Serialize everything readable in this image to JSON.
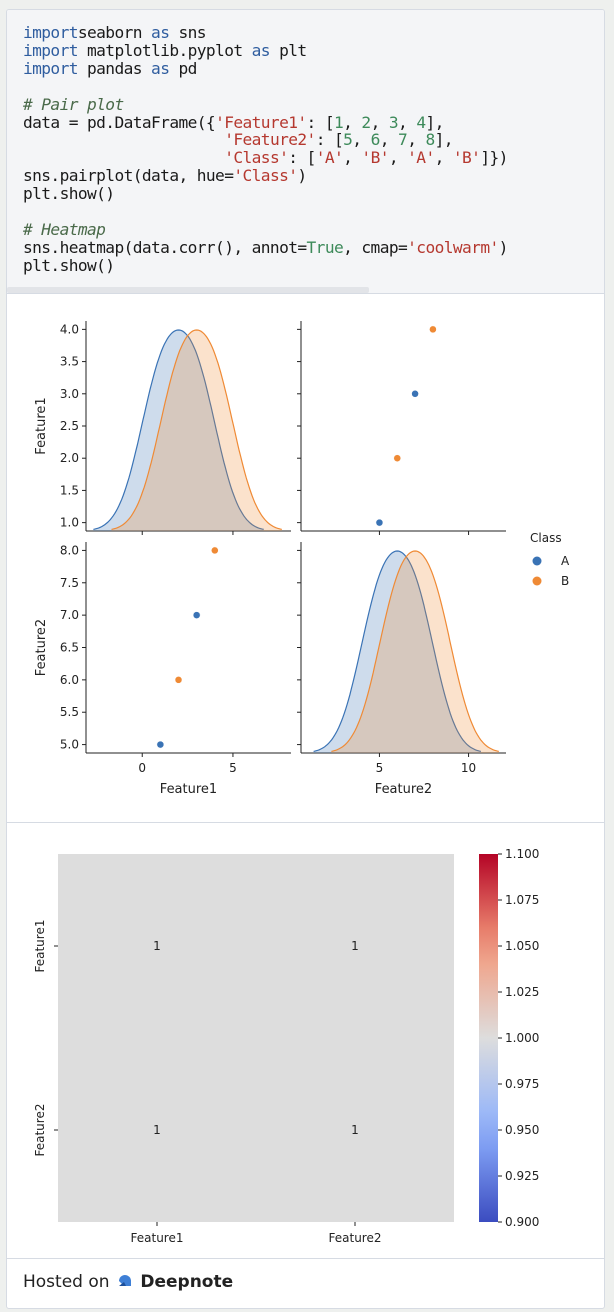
{
  "code": {
    "lines": [
      [
        [
          "kw",
          "import"
        ],
        [
          "",
          "seaborn "
        ],
        [
          "kw",
          "as"
        ],
        [
          "",
          " sns"
        ]
      ],
      [
        [
          "kw",
          "import"
        ],
        [
          "",
          " matplotlib.pyplot "
        ],
        [
          "kw",
          "as"
        ],
        [
          "",
          " plt"
        ]
      ],
      [
        [
          "kw",
          "import"
        ],
        [
          "",
          " pandas "
        ],
        [
          "kw",
          "as"
        ],
        [
          "",
          " pd"
        ]
      ],
      [],
      [
        [
          "cm",
          "# Pair plot"
        ]
      ],
      [
        [
          "",
          "data = pd.DataFrame({"
        ],
        [
          "str",
          "'Feature1'"
        ],
        [
          "",
          ": ["
        ],
        [
          "num",
          "1"
        ],
        [
          "",
          ", "
        ],
        [
          "num",
          "2"
        ],
        [
          "",
          ", "
        ],
        [
          "num",
          "3"
        ],
        [
          "",
          ", "
        ],
        [
          "num",
          "4"
        ],
        [
          "",
          "],"
        ]
      ],
      [
        [
          "",
          "                      "
        ],
        [
          "str",
          "'Feature2'"
        ],
        [
          "",
          ": ["
        ],
        [
          "num",
          "5"
        ],
        [
          "",
          ", "
        ],
        [
          "num",
          "6"
        ],
        [
          "",
          ", "
        ],
        [
          "num",
          "7"
        ],
        [
          "",
          ", "
        ],
        [
          "num",
          "8"
        ],
        [
          "",
          "],"
        ]
      ],
      [
        [
          "",
          "                      "
        ],
        [
          "str",
          "'Class'"
        ],
        [
          "",
          ": ["
        ],
        [
          "str",
          "'A'"
        ],
        [
          "",
          ", "
        ],
        [
          "str",
          "'B'"
        ],
        [
          "",
          ", "
        ],
        [
          "str",
          "'A'"
        ],
        [
          "",
          ", "
        ],
        [
          "str",
          "'B'"
        ],
        [
          "",
          "]})"
        ]
      ],
      [
        [
          "",
          "sns.pairplot(data, hue="
        ],
        [
          "str",
          "'Class'"
        ],
        [
          "",
          ")"
        ]
      ],
      [
        [
          "",
          "plt.show()"
        ]
      ],
      [],
      [
        [
          "cm",
          "# Heatmap"
        ]
      ],
      [
        [
          "",
          "sns.heatmap(data.corr(), annot="
        ],
        [
          "num",
          "True"
        ],
        [
          "",
          ", cmap="
        ],
        [
          "str",
          "'coolwarm'"
        ],
        [
          "",
          ")"
        ]
      ],
      [
        [
          "",
          "plt.show()"
        ]
      ]
    ]
  },
  "chart_data": [
    {
      "type": "scatter",
      "subtype": "pairplot",
      "variables": [
        "Feature1",
        "Feature2"
      ],
      "data": {
        "Feature1": [
          1,
          2,
          3,
          4
        ],
        "Feature2": [
          5,
          6,
          7,
          8
        ],
        "Class": [
          "A",
          "B",
          "A",
          "B"
        ]
      },
      "diagonal": "kde",
      "legend": {
        "title": "Class",
        "entries": [
          "A",
          "B"
        ],
        "placement": "right"
      },
      "colors": {
        "A": "#3a73b5",
        "B": "#ef8a35"
      },
      "ranges": {
        "Feature1": [
          -3.1,
          8.2
        ],
        "Feature2": [
          0.6,
          12.1
        ]
      },
      "yticks": {
        "Feature1": [
          "1.0",
          "1.5",
          "2.0",
          "2.5",
          "3.0",
          "3.5",
          "4.0"
        ],
        "Feature2": [
          "5.0",
          "5.5",
          "6.0",
          "6.5",
          "7.0",
          "7.5",
          "8.0"
        ]
      },
      "xticks": {
        "Feature1": [
          "0",
          "5"
        ],
        "Feature2": [
          "5",
          "10"
        ]
      },
      "xlabels": [
        "Feature1",
        "Feature2"
      ],
      "ylabels": [
        "Feature1",
        "Feature2"
      ]
    },
    {
      "type": "heatmap",
      "rows": [
        "Feature1",
        "Feature2"
      ],
      "cols": [
        "Feature1",
        "Feature2"
      ],
      "values": [
        [
          1,
          1
        ],
        [
          1,
          1
        ]
      ],
      "annotations": [
        "1",
        "1",
        "1",
        "1"
      ],
      "cmap": "coolwarm",
      "colorbar": {
        "range": [
          0.9,
          1.1
        ],
        "ticks": [
          "0.900",
          "0.925",
          "0.950",
          "0.975",
          "1.000",
          "1.025",
          "1.050",
          "1.075",
          "1.100"
        ]
      }
    }
  ],
  "footer": {
    "prefix": "Hosted on",
    "brand": "Deepnote"
  }
}
